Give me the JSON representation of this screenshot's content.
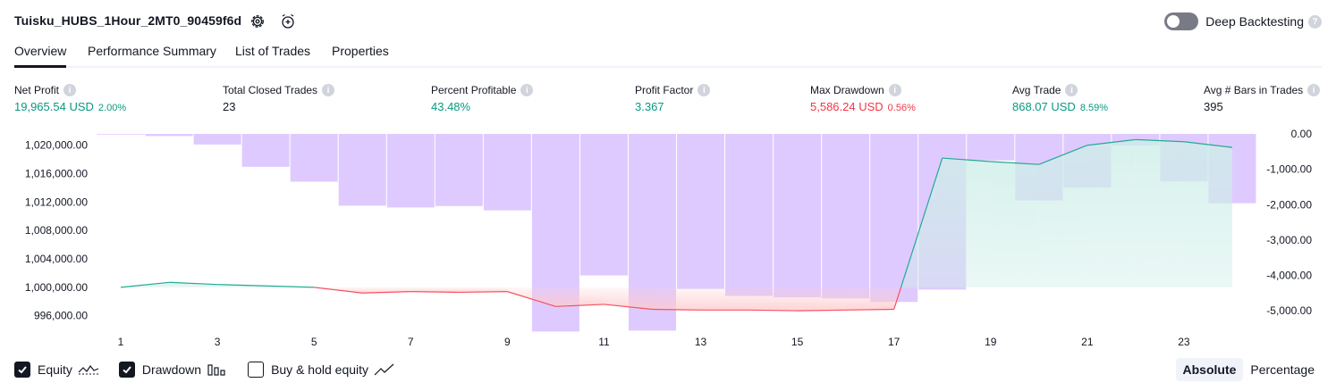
{
  "header": {
    "title": "Tuisku_HUBS_1Hour_2MT0_90459f6d",
    "deep_backtesting_label": "Deep Backtesting",
    "deep_backtesting_on": false
  },
  "tabs": [
    {
      "label": "Overview",
      "active": true
    },
    {
      "label": "Performance Summary",
      "active": false
    },
    {
      "label": "List of Trades",
      "active": false
    },
    {
      "label": "Properties",
      "active": false
    }
  ],
  "metrics": [
    {
      "label": "Net Profit",
      "value": "19,965.54 USD",
      "pct": "2.00%",
      "color": "green"
    },
    {
      "label": "Total Closed Trades",
      "value": "23",
      "pct": "",
      "color": "dark"
    },
    {
      "label": "Percent Profitable",
      "value": "43.48%",
      "pct": "",
      "color": "green"
    },
    {
      "label": "Profit Factor",
      "value": "3.367",
      "pct": "",
      "color": "green"
    },
    {
      "label": "Max Drawdown",
      "value": "5,586.24 USD",
      "pct": "0.56%",
      "color": "red"
    },
    {
      "label": "Avg Trade",
      "value": "868.07 USD",
      "pct": "8.59%",
      "color": "green"
    },
    {
      "label": "Avg # Bars in Trades",
      "value": "395",
      "pct": "",
      "color": "dark"
    }
  ],
  "chart_data": {
    "type": "line",
    "x_tick_labels": [
      "1",
      "3",
      "5",
      "7",
      "9",
      "11",
      "13",
      "15",
      "17",
      "19",
      "21",
      "23"
    ],
    "left_axis_ticks": [
      "1,020,000.00",
      "1,016,000.00",
      "1,012,000.00",
      "1,008,000.00",
      "1,004,000.00",
      "1,000,000.00",
      "996,000.00"
    ],
    "right_axis_ticks": [
      "0.00",
      "-1,000.00",
      "-2,000.00",
      "-3,000.00",
      "-4,000.00",
      "-5,000.00"
    ],
    "ylim_equity": [
      994200,
      1021600
    ],
    "ylim_drawdown": [
      -5500,
      0
    ],
    "x_range": [
      0.5,
      24.5
    ],
    "baseline_equity": 1000000,
    "colors": {
      "equity_up": "#22ab94",
      "equity_down": "#f7525f",
      "drawdown": "#d9c1ff",
      "fill_up": "#ceeee8",
      "fill_down": "#fccbcd"
    },
    "series": [
      {
        "name": "Equity",
        "x": [
          1,
          2,
          3,
          4,
          5,
          6,
          7,
          8,
          9,
          10,
          11,
          12,
          13,
          14,
          15,
          16,
          17,
          18,
          19,
          20,
          21,
          22,
          23,
          24
        ],
        "values": [
          1000000,
          1000700,
          1000400,
          1000200,
          1000000,
          999200,
          999400,
          999300,
          999400,
          997300,
          997600,
          996900,
          996800,
          996800,
          996700,
          996800,
          996900,
          1018200,
          1017700,
          1017300,
          1020000,
          1020800,
          1020500,
          1019700
        ]
      },
      {
        "name": "Drawdown",
        "x": [
          1,
          2,
          3,
          4,
          5,
          6,
          7,
          8,
          9,
          10,
          11,
          12,
          13,
          14,
          15,
          16,
          17,
          18,
          19,
          20,
          21,
          22,
          23,
          24
        ],
        "values": [
          -20,
          -60,
          -300,
          -930,
          -1350,
          -2030,
          -2080,
          -2040,
          -2160,
          -5586,
          -4000,
          -5560,
          -4380,
          -4580,
          -4620,
          -4650,
          -4750,
          -4400,
          -750,
          -1880,
          -1520,
          -330,
          -1340,
          -1960
        ]
      }
    ]
  },
  "legend": [
    {
      "label": "Equity",
      "checked": true,
      "glyph": "equity-line-icon"
    },
    {
      "label": "Drawdown",
      "checked": true,
      "glyph": "drawdown-bars-icon"
    },
    {
      "label": "Buy & hold equity",
      "checked": false,
      "glyph": "buy-hold-line-icon"
    }
  ],
  "mode": {
    "absolute_label": "Absolute",
    "percentage_label": "Percentage",
    "active": "absolute"
  }
}
